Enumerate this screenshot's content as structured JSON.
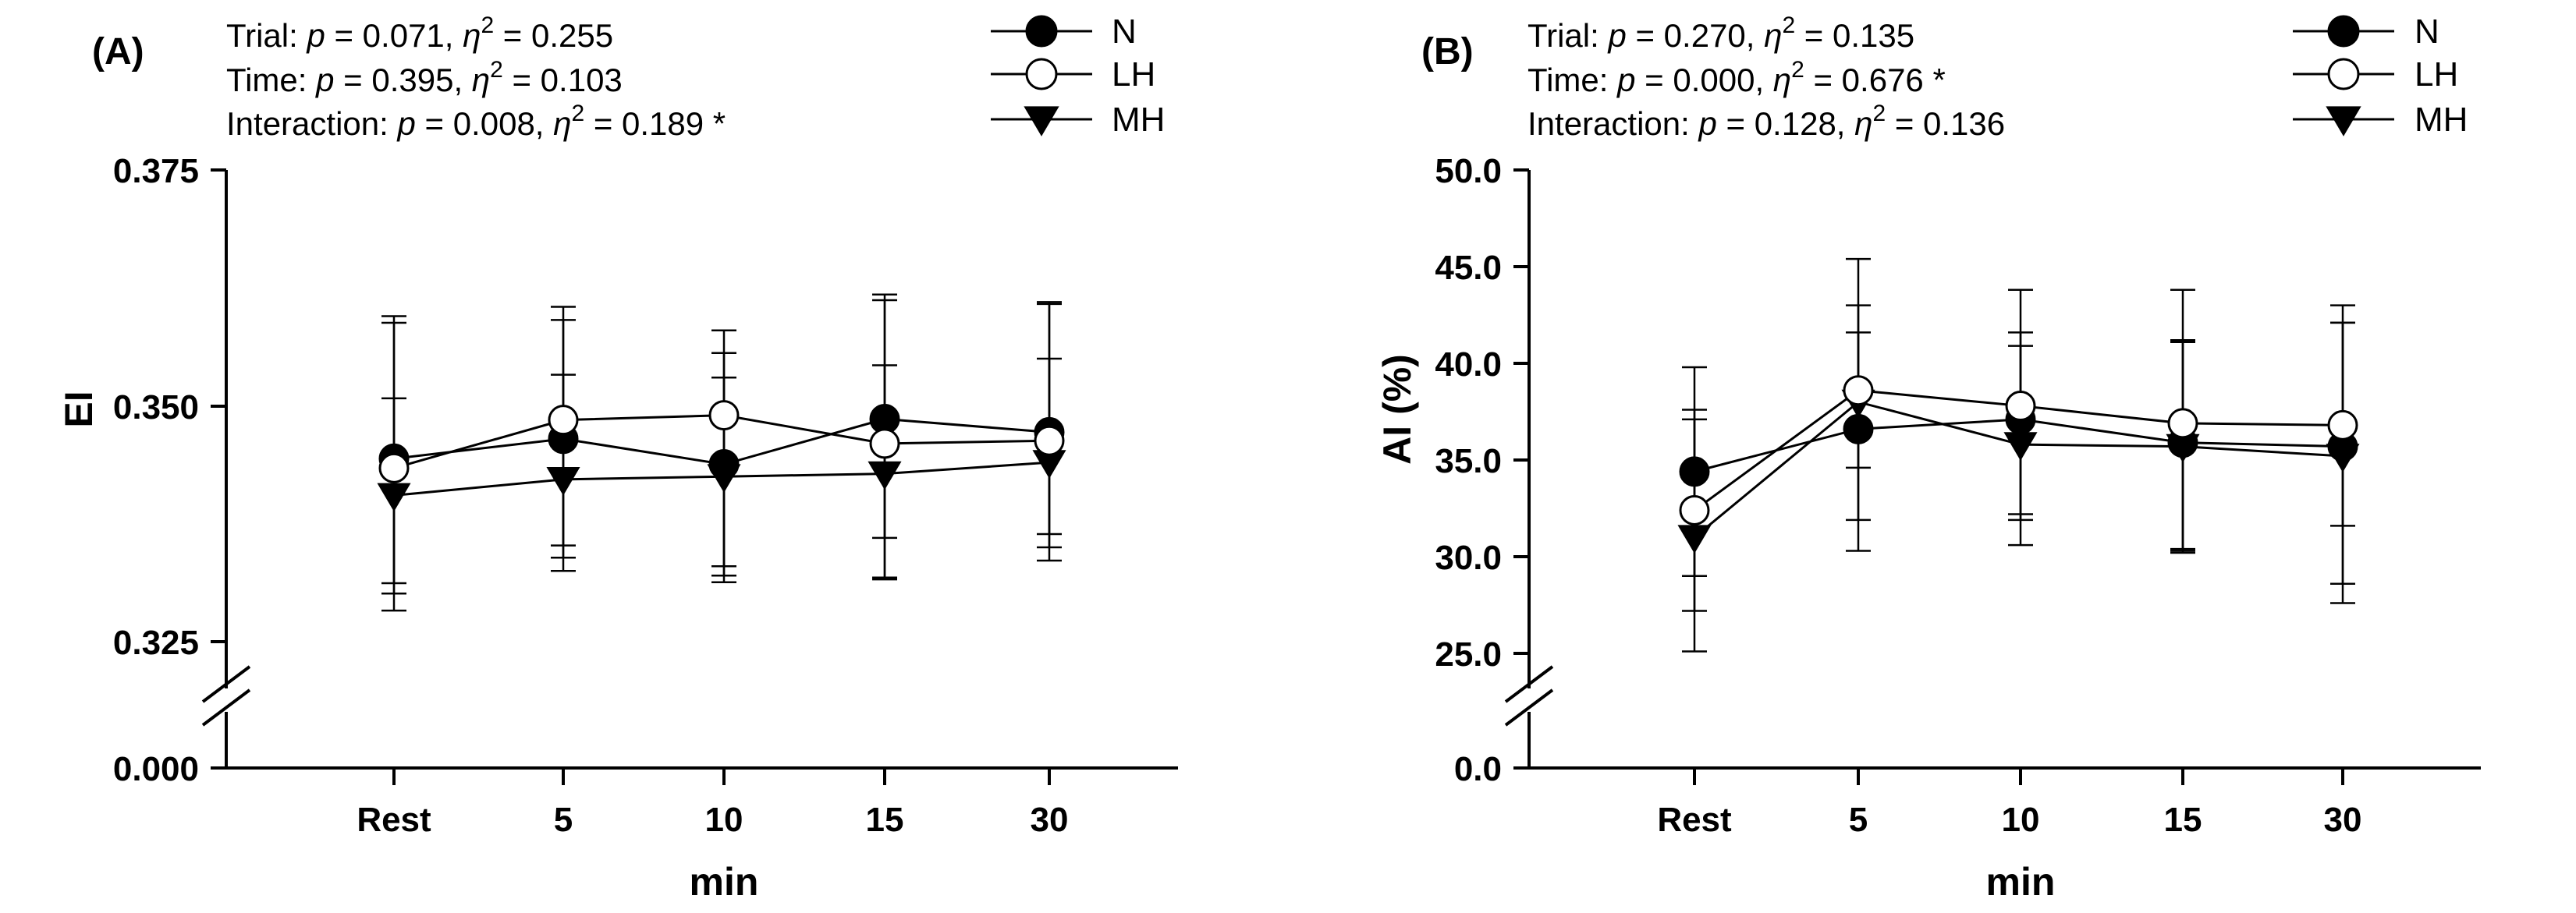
{
  "chart_data": [
    {
      "type": "line",
      "panel_label": "(A)",
      "ylabel": "EI",
      "xlabel": "min",
      "categories": [
        "Rest",
        "5",
        "10",
        "15",
        "30"
      ],
      "yticks": [
        "0.375",
        "0.350",
        "0.325",
        "0.000"
      ],
      "ylim": [
        0.0,
        0.375
      ],
      "axis_break": [
        0.0,
        0.325
      ],
      "stats": [
        {
          "prefix": "Trial: ",
          "p": "p",
          "pval": " = 0.071,  ",
          "eta": "η",
          "sup": "2",
          "eval": " = 0.255",
          "star": ""
        },
        {
          "prefix": "Time: ",
          "p": "p",
          "pval": " = 0.395,  ",
          "eta": "η",
          "sup": "2",
          "eval": " = 0.103",
          "star": ""
        },
        {
          "prefix": "Interaction: ",
          "p": "p",
          "pval": " = 0.008,  ",
          "eta": "η",
          "sup": "2",
          "eval": " = 0.189",
          "star": " *"
        }
      ],
      "series": [
        {
          "name": "N",
          "marker": "circle-filled",
          "values": [
            0.3444,
            0.3465,
            0.3438,
            0.3486,
            0.3472
          ],
          "err_high": [
            0.3588,
            0.3591,
            0.3556,
            0.3612,
            0.3608
          ],
          "err_low": [
            0.3301,
            0.3339,
            0.332,
            0.336,
            0.3336
          ]
        },
        {
          "name": "LH",
          "marker": "circle-open",
          "values": [
            0.3434,
            0.3485,
            0.349,
            0.346,
            0.3463
          ],
          "err_high": [
            0.3595,
            0.3605,
            0.358,
            0.3618,
            0.361
          ],
          "err_low": [
            0.3283,
            0.3325,
            0.3313,
            0.3316,
            0.335
          ]
        },
        {
          "name": "MH",
          "marker": "triangle-down",
          "values": [
            0.3405,
            0.3422,
            0.3425,
            0.3428,
            0.344
          ],
          "err_high": [
            0.3508,
            0.3533,
            0.353,
            0.3543,
            0.355
          ],
          "err_low": [
            0.3312,
            0.3352,
            0.333,
            0.3318,
            0.3364
          ]
        }
      ]
    },
    {
      "type": "line",
      "panel_label": "(B)",
      "ylabel": "AI (%)",
      "xlabel": "min",
      "categories": [
        "Rest",
        "5",
        "10",
        "15",
        "30"
      ],
      "yticks": [
        "50.0",
        "45.0",
        "40.0",
        "35.0",
        "30.0",
        "25.0",
        "0.0"
      ],
      "ylim": [
        0.0,
        50.0
      ],
      "axis_break": [
        0.0,
        25.0
      ],
      "stats": [
        {
          "prefix": "Trial: ",
          "p": "p",
          "pval": " = 0.270,  ",
          "eta": "η",
          "sup": "2",
          "eval": " = 0.135",
          "star": ""
        },
        {
          "prefix": "Time: ",
          "p": "p",
          "pval": " = 0.000,  ",
          "eta": "η",
          "sup": "2",
          "eval": " = 0.676",
          "star": " *"
        },
        {
          "prefix": "Interaction: ",
          "p": "p",
          "pval": " = 0.128,  ",
          "eta": "η",
          "sup": "2",
          "eval": " = 0.136",
          "star": ""
        }
      ],
      "series": [
        {
          "name": "N",
          "marker": "circle-filled",
          "values": [
            34.4,
            36.6,
            37.1,
            35.9,
            35.7
          ],
          "err_high": [
            39.8,
            45.4,
            41.6,
            41.2,
            42.1
          ],
          "err_low": [
            29.0,
            30.3,
            32.2,
            30.4,
            31.6
          ]
        },
        {
          "name": "LH",
          "marker": "circle-open",
          "values": [
            32.4,
            38.6,
            37.8,
            36.9,
            36.8
          ],
          "err_high": [
            37.6,
            43.0,
            43.8,
            43.8,
            43.0
          ],
          "err_low": [
            27.2,
            34.6,
            31.9,
            30.2,
            28.6
          ]
        },
        {
          "name": "MH",
          "marker": "triangle-down",
          "values": [
            31.0,
            38.0,
            35.8,
            35.7,
            35.2
          ],
          "err_high": [
            37.1,
            41.6,
            40.9,
            41.1,
            42.1
          ],
          "err_low": [
            25.1,
            31.9,
            30.6,
            30.3,
            27.6
          ]
        }
      ]
    }
  ]
}
